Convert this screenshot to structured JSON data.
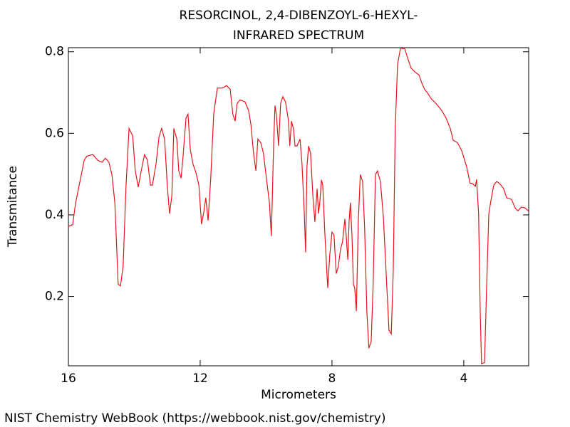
{
  "chart_data": {
    "type": "line",
    "title": "RESORCINOL, 2,4-DIBENZOYL-6-HEXYL-",
    "subtitle": "INFRARED SPECTRUM",
    "x_label": "Micrometers",
    "y_label": "Transmitance",
    "credit": "NIST Chemistry WebBook (https://webbook.nist.gov/chemistry)",
    "xlim": [
      16,
      2.03
    ],
    "ylim": [
      0.03,
      0.81
    ],
    "xticks": [
      16,
      12,
      8,
      4
    ],
    "yticks": [
      0.2,
      0.4,
      0.6,
      0.8
    ],
    "color": "#e8141c",
    "x": [
      16.0,
      15.87,
      15.78,
      15.65,
      15.52,
      15.44,
      15.26,
      15.11,
      14.98,
      14.88,
      14.77,
      14.68,
      14.59,
      14.49,
      14.42,
      14.34,
      14.25,
      14.16,
      14.05,
      13.97,
      13.88,
      13.79,
      13.69,
      13.6,
      13.51,
      13.45,
      13.34,
      13.25,
      13.17,
      13.08,
      13.0,
      12.93,
      12.86,
      12.8,
      12.71,
      12.65,
      12.58,
      12.52,
      12.43,
      12.37,
      12.3,
      12.22,
      12.13,
      12.04,
      11.96,
      11.89,
      11.83,
      11.76,
      11.68,
      11.59,
      11.48,
      11.33,
      11.2,
      11.09,
      11.01,
      10.94,
      10.88,
      10.79,
      10.64,
      10.53,
      10.46,
      10.38,
      10.31,
      10.25,
      10.16,
      10.08,
      9.99,
      9.9,
      9.84,
      9.77,
      9.73,
      9.69,
      9.62,
      9.56,
      9.49,
      9.41,
      9.32,
      9.28,
      9.23,
      9.17,
      9.12,
      9.06,
      8.97,
      8.91,
      8.84,
      8.8,
      8.76,
      8.71,
      8.65,
      8.58,
      8.52,
      8.45,
      8.41,
      8.37,
      8.32,
      8.28,
      8.22,
      8.13,
      8.07,
      8.0,
      7.94,
      7.87,
      7.81,
      7.74,
      7.68,
      7.61,
      7.57,
      7.52,
      7.48,
      7.44,
      7.39,
      7.35,
      7.31,
      7.26,
      7.2,
      7.14,
      7.07,
      7.01,
      6.94,
      6.88,
      6.81,
      6.75,
      6.68,
      6.62,
      6.53,
      6.44,
      6.36,
      6.27,
      6.2,
      6.14,
      6.08,
      6.01,
      5.92,
      5.79,
      5.71,
      5.6,
      5.49,
      5.36,
      5.28,
      5.19,
      5.1,
      4.99,
      4.84,
      4.67,
      4.54,
      4.41,
      4.32,
      4.19,
      4.06,
      3.91,
      3.81,
      3.72,
      3.65,
      3.61,
      3.55,
      3.5,
      3.46,
      3.37,
      3.31,
      3.24,
      3.18,
      3.09,
      3.0,
      2.9,
      2.79,
      2.7,
      2.55,
      2.44,
      2.36,
      2.25,
      2.14,
      2.03
    ],
    "values": [
      0.372,
      0.376,
      0.43,
      0.482,
      0.534,
      0.544,
      0.548,
      0.534,
      0.529,
      0.539,
      0.529,
      0.499,
      0.43,
      0.23,
      0.226,
      0.273,
      0.473,
      0.612,
      0.594,
      0.508,
      0.468,
      0.508,
      0.548,
      0.534,
      0.473,
      0.473,
      0.525,
      0.591,
      0.612,
      0.586,
      0.473,
      0.403,
      0.447,
      0.612,
      0.586,
      0.508,
      0.49,
      0.543,
      0.638,
      0.647,
      0.56,
      0.525,
      0.504,
      0.473,
      0.377,
      0.407,
      0.442,
      0.386,
      0.49,
      0.647,
      0.711,
      0.711,
      0.717,
      0.708,
      0.647,
      0.63,
      0.673,
      0.682,
      0.677,
      0.656,
      0.621,
      0.551,
      0.508,
      0.586,
      0.577,
      0.551,
      0.49,
      0.43,
      0.348,
      0.577,
      0.668,
      0.647,
      0.569,
      0.673,
      0.69,
      0.677,
      0.63,
      0.569,
      0.63,
      0.612,
      0.569,
      0.569,
      0.586,
      0.525,
      0.403,
      0.308,
      0.517,
      0.569,
      0.551,
      0.447,
      0.383,
      0.464,
      0.403,
      0.43,
      0.486,
      0.473,
      0.36,
      0.221,
      0.299,
      0.358,
      0.351,
      0.256,
      0.273,
      0.316,
      0.334,
      0.39,
      0.351,
      0.29,
      0.386,
      0.43,
      0.343,
      0.23,
      0.221,
      0.164,
      0.386,
      0.499,
      0.482,
      0.369,
      0.16,
      0.073,
      0.09,
      0.23,
      0.499,
      0.508,
      0.482,
      0.395,
      0.264,
      0.117,
      0.108,
      0.264,
      0.612,
      0.769,
      0.809,
      0.807,
      0.786,
      0.76,
      0.751,
      0.743,
      0.725,
      0.708,
      0.699,
      0.685,
      0.673,
      0.656,
      0.638,
      0.612,
      0.583,
      0.577,
      0.557,
      0.517,
      0.478,
      0.476,
      0.47,
      0.487,
      0.403,
      0.16,
      0.035,
      0.038,
      0.212,
      0.403,
      0.433,
      0.473,
      0.482,
      0.476,
      0.464,
      0.442,
      0.438,
      0.417,
      0.41,
      0.419,
      0.417,
      0.409
    ]
  }
}
